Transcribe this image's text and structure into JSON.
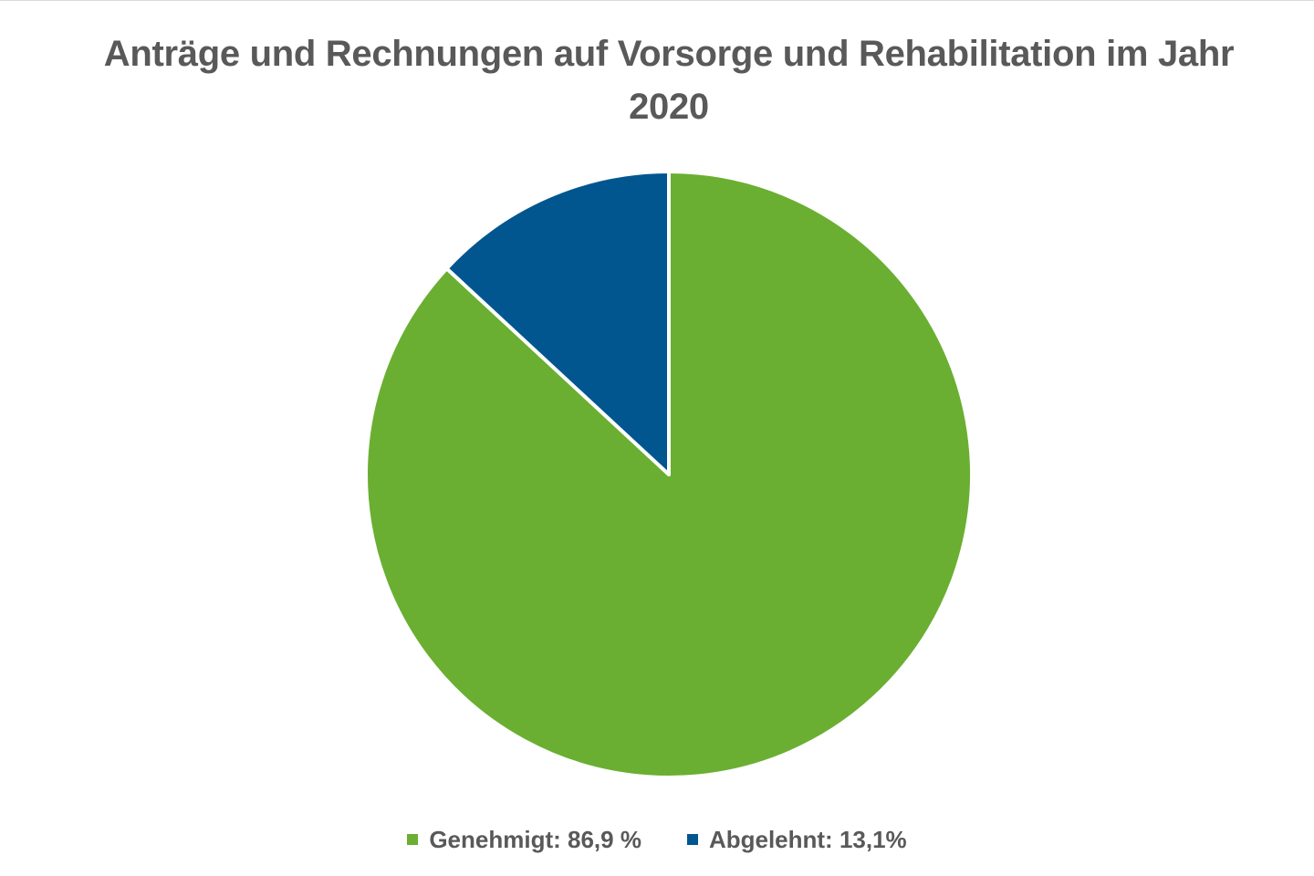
{
  "chart_data": {
    "type": "pie",
    "title": "Anträge und Rechnungen auf Vorsorge und Rehabilitation im Jahr 2020",
    "categories": [
      "Genehmigt",
      "Abgelehnt"
    ],
    "values": [
      86.9,
      13.1
    ],
    "unit": "%",
    "colors": [
      "#6aaf31",
      "#02568f"
    ],
    "legend_labels": [
      "Genehmigt: 86,9 %",
      "Abgelehnt: 13,1%"
    ],
    "legend_position": "bottom",
    "start_angle": "12 o'clock",
    "direction": "Genehmigt clockwise from top, Abgelehnt counter-clockwise from top"
  },
  "title_line1": "Anträge und Rechnungen auf Vorsorge und Rehabilitation im Jahr",
  "title_line2": "2020",
  "legend": [
    {
      "label": "Genehmigt: 86,9 %",
      "color": "#6aaf31"
    },
    {
      "label": "Abgelehnt: 13,1%",
      "color": "#02568f"
    }
  ]
}
